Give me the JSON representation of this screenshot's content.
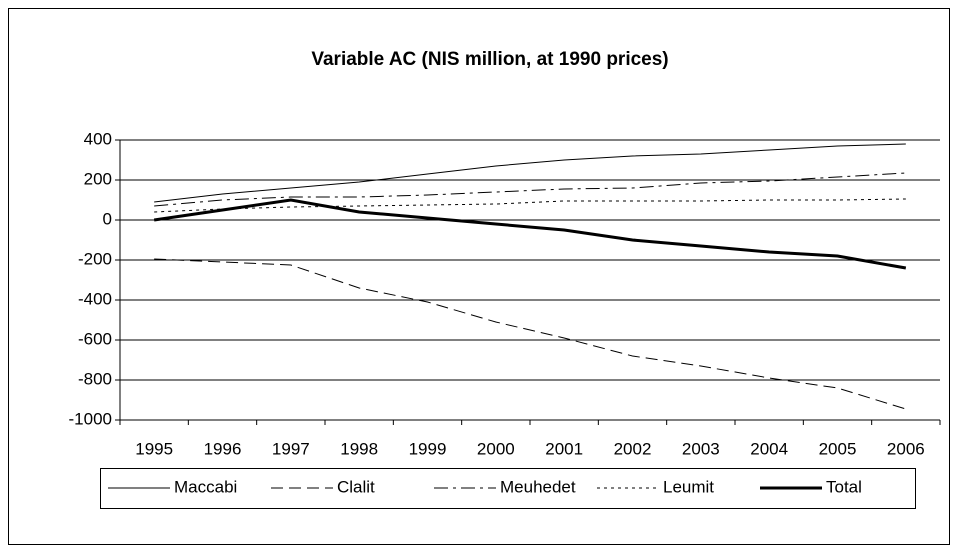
{
  "chart_data": {
    "type": "line",
    "title": "Variable AC (NIS million, at 1990 prices)",
    "categories": [
      "1995",
      "1996",
      "1997",
      "1998",
      "1999",
      "2000",
      "2001",
      "2002",
      "2003",
      "2004",
      "2005",
      "2006"
    ],
    "series": [
      {
        "name": "Maccabi",
        "color": "#000000",
        "dash": "solid",
        "width": 1,
        "values": [
          90,
          130,
          160,
          190,
          230,
          270,
          300,
          320,
          330,
          350,
          370,
          380
        ]
      },
      {
        "name": "Clalit",
        "color": "#000000",
        "dash": "dashed",
        "width": 1,
        "values": [
          -195,
          -210,
          -225,
          -340,
          -410,
          -510,
          -590,
          -680,
          -730,
          -790,
          -840,
          -945
        ]
      },
      {
        "name": "Meuhedet",
        "color": "#000000",
        "dash": "dashdot",
        "width": 1,
        "values": [
          70,
          100,
          115,
          115,
          125,
          140,
          155,
          160,
          185,
          195,
          215,
          235
        ]
      },
      {
        "name": "Leumit",
        "color": "#000000",
        "dash": "dotted",
        "width": 1,
        "values": [
          40,
          55,
          65,
          70,
          75,
          80,
          95,
          95,
          95,
          100,
          100,
          105
        ]
      },
      {
        "name": "Total",
        "color": "#000000",
        "dash": "solid",
        "width": 3,
        "values": [
          0,
          50,
          100,
          40,
          10,
          -20,
          -50,
          -100,
          -130,
          -160,
          -180,
          -240
        ]
      }
    ],
    "ylim": [
      -1000,
      400
    ],
    "yticks": [
      -1000,
      -800,
      -600,
      -400,
      -200,
      0,
      200,
      400
    ],
    "grid": true,
    "legend": "bottom"
  }
}
